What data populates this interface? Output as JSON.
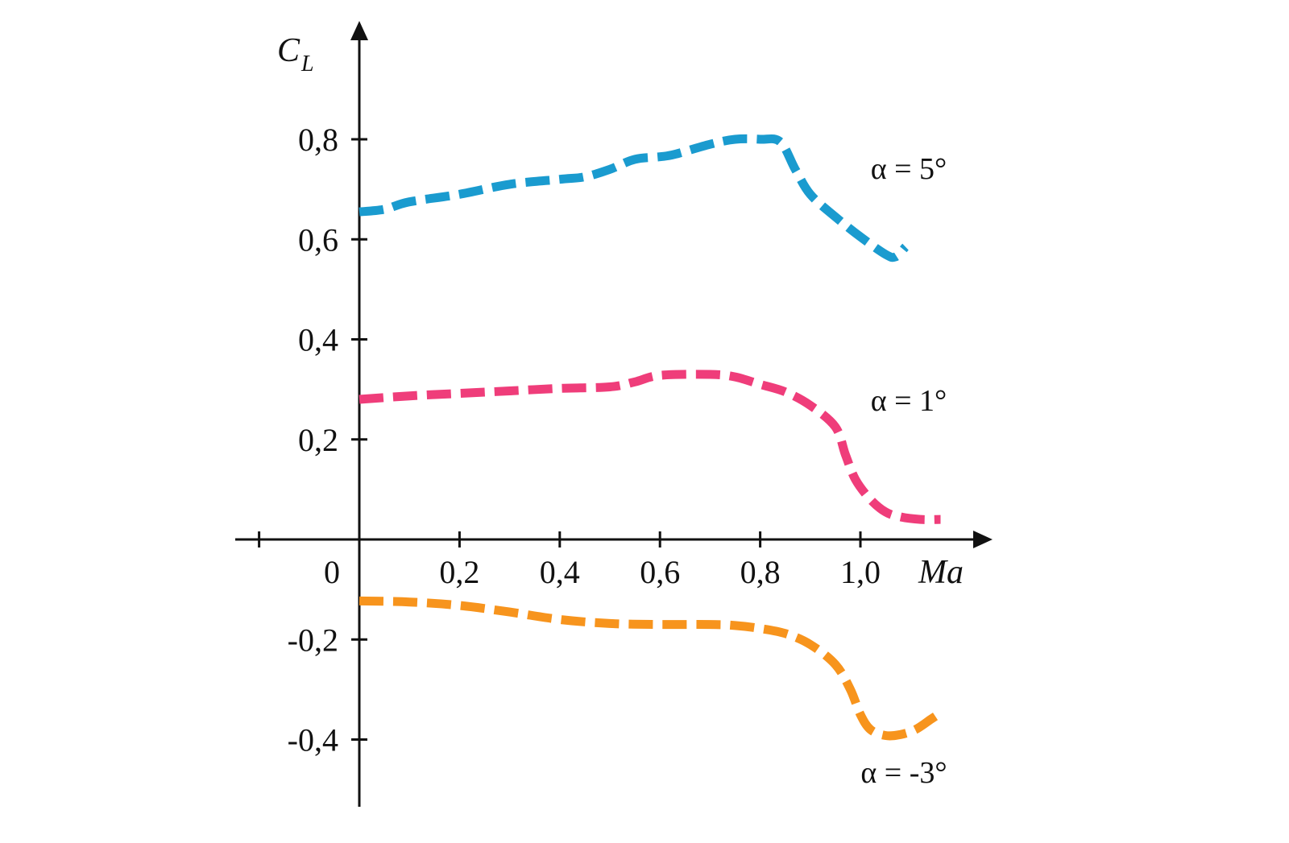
{
  "chart_data": {
    "type": "line",
    "xlabel": "Ma",
    "ylabel": {
      "main": "C",
      "subscript": "L"
    },
    "xlim": [
      -0.2,
      1.25
    ],
    "ylim": [
      -0.53,
      1.05
    ],
    "x_ticks": [
      {
        "value": 0,
        "label": "0"
      },
      {
        "value": 0.2,
        "label": "0,2"
      },
      {
        "value": 0.4,
        "label": "0,4"
      },
      {
        "value": 0.6,
        "label": "0,6"
      },
      {
        "value": 0.8,
        "label": "0,8"
      },
      {
        "value": 1.0,
        "label": "1,0"
      }
    ],
    "x_extra_tick_marks": [
      -0.2
    ],
    "y_ticks": [
      {
        "value": 0.8,
        "label": "0,8"
      },
      {
        "value": 0.6,
        "label": "0,6"
      },
      {
        "value": 0.4,
        "label": "0,4"
      },
      {
        "value": 0.2,
        "label": "0,2"
      },
      {
        "value": -0.2,
        "label": "-0,2"
      },
      {
        "value": -0.4,
        "label": "-0,4"
      }
    ],
    "grid": false,
    "legend": "none",
    "series": [
      {
        "name": "α = 5°",
        "color": "#1a9bcf",
        "x": [
          0.0,
          0.05,
          0.1,
          0.2,
          0.3,
          0.4,
          0.45,
          0.5,
          0.55,
          0.6,
          0.63,
          0.7,
          0.75,
          0.8,
          0.84,
          0.87,
          0.9,
          0.95,
          1.0,
          1.05,
          1.07,
          1.09
        ],
        "y": [
          0.655,
          0.66,
          0.675,
          0.69,
          0.71,
          0.72,
          0.725,
          0.74,
          0.76,
          0.765,
          0.77,
          0.79,
          0.8,
          0.8,
          0.795,
          0.74,
          0.69,
          0.645,
          0.605,
          0.57,
          0.565,
          0.585
        ]
      },
      {
        "name": "α = 1°",
        "color": "#ef3d7a",
        "x": [
          0.0,
          0.1,
          0.2,
          0.3,
          0.4,
          0.5,
          0.55,
          0.6,
          0.7,
          0.75,
          0.8,
          0.85,
          0.9,
          0.95,
          0.97,
          0.99,
          1.02,
          1.05,
          1.08,
          1.12,
          1.16
        ],
        "y": [
          0.28,
          0.287,
          0.292,
          0.297,
          0.302,
          0.305,
          0.315,
          0.328,
          0.33,
          0.325,
          0.31,
          0.295,
          0.268,
          0.225,
          0.17,
          0.12,
          0.08,
          0.055,
          0.045,
          0.04,
          0.04
        ]
      },
      {
        "name": "α = -3°",
        "color": "#f7941d",
        "x": [
          0.0,
          0.1,
          0.2,
          0.3,
          0.4,
          0.5,
          0.6,
          0.7,
          0.75,
          0.8,
          0.85,
          0.9,
          0.95,
          0.98,
          1.0,
          1.02,
          1.05,
          1.08,
          1.11,
          1.14,
          1.155
        ],
        "y": [
          -0.123,
          -0.125,
          -0.132,
          -0.145,
          -0.16,
          -0.168,
          -0.17,
          -0.17,
          -0.172,
          -0.178,
          -0.188,
          -0.21,
          -0.25,
          -0.3,
          -0.35,
          -0.38,
          -0.392,
          -0.39,
          -0.38,
          -0.36,
          -0.35
        ]
      }
    ]
  }
}
